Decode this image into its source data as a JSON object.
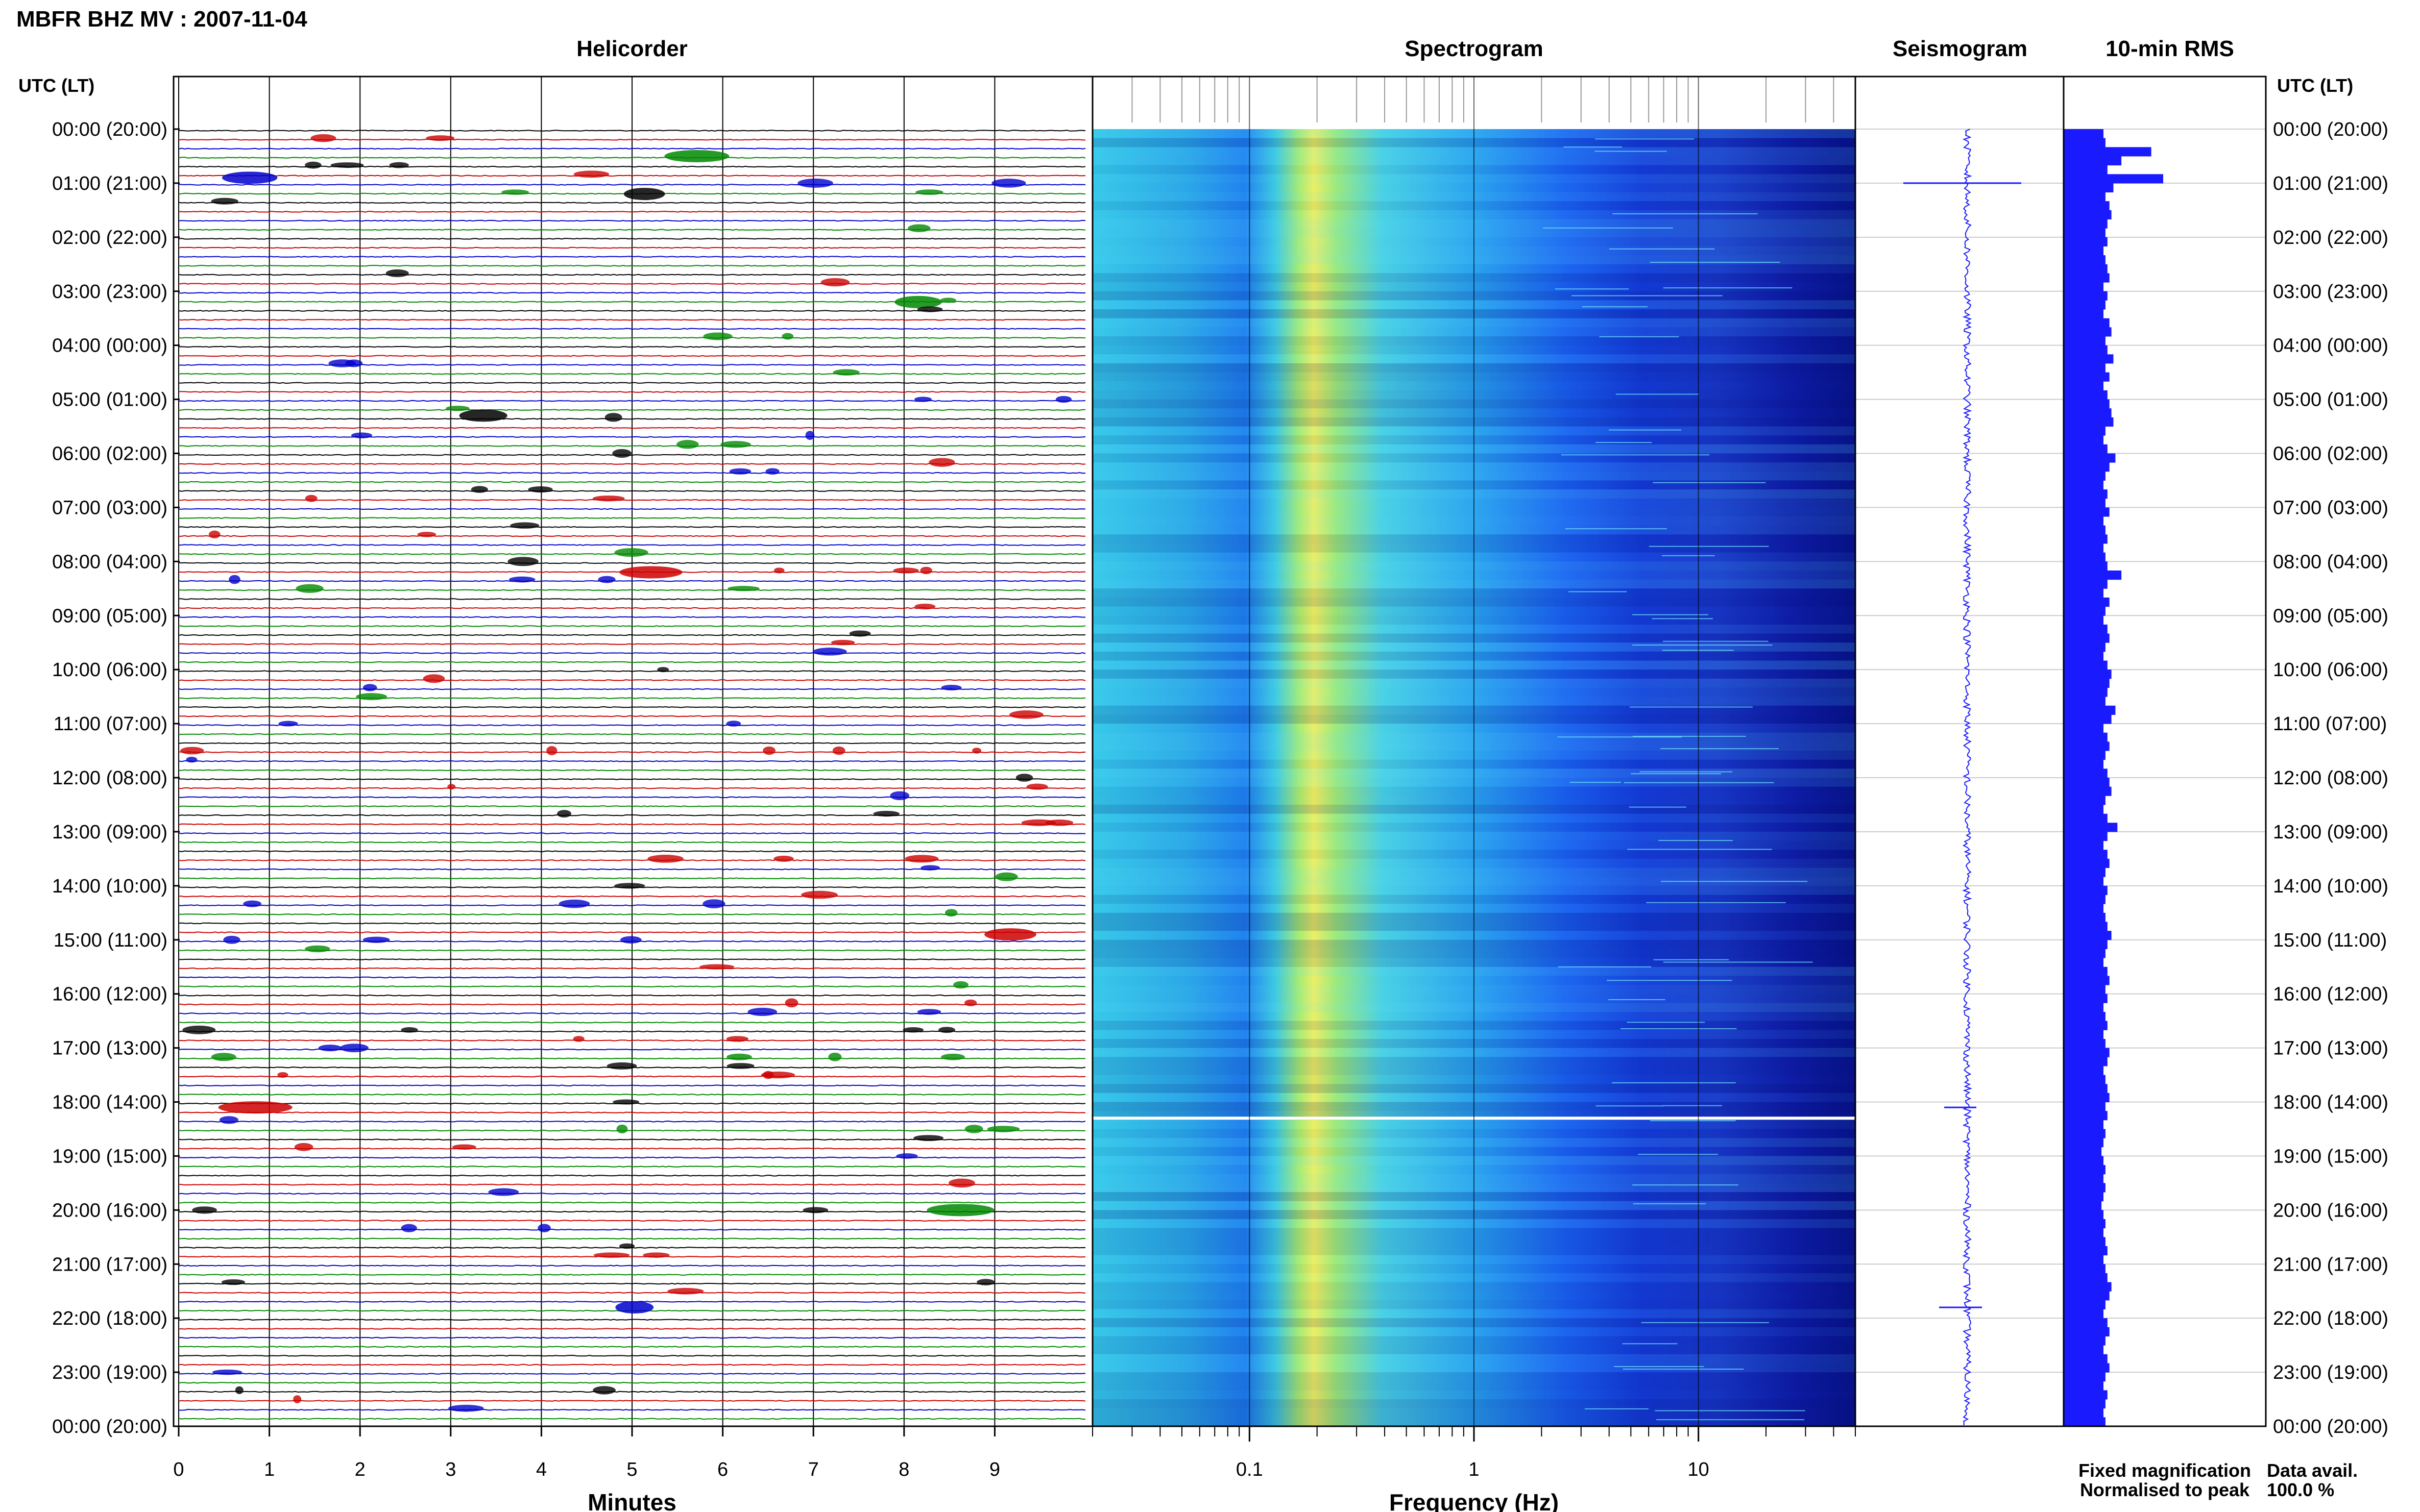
{
  "title": "MBFR BHZ MV : 2007-11-04",
  "panels": {
    "helicorder": "Helicorder",
    "spectrogram": "Spectrogram",
    "seismogram": "Seismogram",
    "rms": "10-min RMS"
  },
  "time_axis_label": "UTC (LT)",
  "time_labels": [
    "00:00 (20:00)",
    "01:00 (21:00)",
    "02:00 (22:00)",
    "03:00 (23:00)",
    "04:00 (00:00)",
    "05:00 (01:00)",
    "06:00 (02:00)",
    "07:00 (03:00)",
    "08:00 (04:00)",
    "09:00 (05:00)",
    "10:00 (06:00)",
    "11:00 (07:00)",
    "12:00 (08:00)",
    "13:00 (09:00)",
    "14:00 (10:00)",
    "15:00 (11:00)",
    "16:00 (12:00)",
    "17:00 (13:00)",
    "18:00 (14:00)",
    "19:00 (15:00)",
    "20:00 (16:00)",
    "21:00 (17:00)",
    "22:00 (18:00)",
    "23:00 (19:00)",
    "00:00 (20:00)"
  ],
  "helicorder_axis": {
    "label": "Minutes",
    "ticks": [
      "0",
      "1",
      "2",
      "3",
      "4",
      "5",
      "6",
      "7",
      "8",
      "9"
    ]
  },
  "spectrogram_axis": {
    "label": "Frequency (Hz)",
    "ticks": [
      "0.1",
      "1",
      "10"
    ]
  },
  "legend": {
    "fixed": "Fixed magnification",
    "normalised": "Normalised to peak",
    "fixed_color": "#1a1aff",
    "normalised_color": "#e00000"
  },
  "data_avail": {
    "label": "Data avail.",
    "value": "100.0 %"
  },
  "trace_colors": [
    "#000000",
    "#cc0000",
    "#0000cc",
    "#008800"
  ],
  "chart_data": [
    {
      "type": "line",
      "panel": "helicorder",
      "x_unit": "minutes",
      "xlim": [
        0,
        10
      ],
      "rows_per_hour": 6,
      "events": [
        {
          "hour": 0.5,
          "minute": 5.5,
          "color": "#008800"
        },
        {
          "hour": 0.9,
          "minute": 0.6,
          "color": "#0000cc"
        },
        {
          "hour": 1.2,
          "minute": 5.0,
          "color": "#000000"
        },
        {
          "hour": 3.2,
          "minute": 8.0,
          "color": "#008800"
        },
        {
          "hour": 5.3,
          "minute": 3.2,
          "color": "#000000"
        },
        {
          "hour": 8.2,
          "minute": 5.0,
          "color": "#cc0000"
        },
        {
          "hour": 14.9,
          "minute": 9.0,
          "color": "#cc0000"
        },
        {
          "hour": 18.1,
          "minute": 0.6,
          "color": "#cc0000"
        },
        {
          "hour": 20.0,
          "minute": 8.4,
          "color": "#008800"
        },
        {
          "hour": 21.8,
          "minute": 4.9,
          "color": "#0000cc"
        }
      ]
    },
    {
      "type": "heatmap",
      "panel": "spectrogram",
      "x_scale": "log",
      "xlim_hz": [
        0.02,
        50
      ],
      "peak_hz": 0.22,
      "gap_hour": 18.3
    },
    {
      "type": "line",
      "panel": "seismogram",
      "spikes": [
        {
          "hour": 1.0,
          "amplitude": 1.0
        },
        {
          "hour": 21.8,
          "amplitude": 0.3
        },
        {
          "hour": 18.1,
          "amplitude": 0.2
        }
      ]
    },
    {
      "type": "bar",
      "panel": "rms",
      "interval_minutes": 10,
      "values": [
        0.4,
        0.42,
        0.88,
        0.58,
        0.44,
        1.0,
        0.5,
        0.42,
        0.46,
        0.48,
        0.44,
        0.42,
        0.44,
        0.4,
        0.42,
        0.44,
        0.46,
        0.4,
        0.44,
        0.42,
        0.4,
        0.46,
        0.48,
        0.42,
        0.44,
        0.5,
        0.42,
        0.46,
        0.4,
        0.44,
        0.46,
        0.48,
        0.5,
        0.42,
        0.4,
        0.44,
        0.52,
        0.46,
        0.42,
        0.4,
        0.44,
        0.42,
        0.46,
        0.4,
        0.42,
        0.44,
        0.4,
        0.42,
        0.44,
        0.58,
        0.44,
        0.4,
        0.46,
        0.42,
        0.4,
        0.44,
        0.46,
        0.42,
        0.4,
        0.44,
        0.48,
        0.46,
        0.44,
        0.42,
        0.52,
        0.48,
        0.4,
        0.44,
        0.46,
        0.42,
        0.4,
        0.44,
        0.46,
        0.48,
        0.42,
        0.4,
        0.44,
        0.54,
        0.44,
        0.4,
        0.44,
        0.46,
        0.42,
        0.4,
        0.44,
        0.42,
        0.4,
        0.42,
        0.44,
        0.48,
        0.44,
        0.42,
        0.4,
        0.44,
        0.46,
        0.42,
        0.44,
        0.4,
        0.42,
        0.44,
        0.4,
        0.42,
        0.46,
        0.44,
        0.4,
        0.42,
        0.44,
        0.46,
        0.42,
        0.44,
        0.4,
        0.42,
        0.4,
        0.38,
        0.4,
        0.42,
        0.4,
        0.42,
        0.4,
        0.38,
        0.4,
        0.42,
        0.4,
        0.42,
        0.44,
        0.4,
        0.42,
        0.44,
        0.48,
        0.46,
        0.42,
        0.4,
        0.44,
        0.46,
        0.42,
        0.4,
        0.44,
        0.46,
        0.42,
        0.4,
        0.44,
        0.42,
        0.4,
        0.42
      ]
    }
  ]
}
